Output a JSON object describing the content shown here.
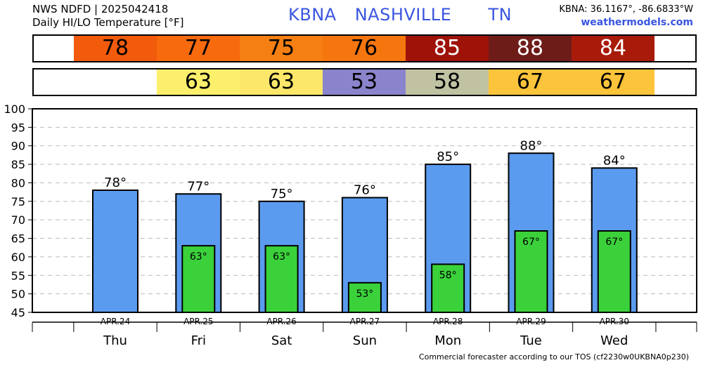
{
  "header": {
    "product_line": "NWS NDFD | 2025042418",
    "title_line": "Daily HI/LO Temperature [°F]",
    "station_id": "KBNA",
    "station_name": "NASHVILLE",
    "state": "TN",
    "coords": "KBNA: 36.1167°, -86.6833°W",
    "site": "weathermodels.com"
  },
  "footer": "Commercial forecaster according to our TOS (cf2230w0UKBNA0p230)",
  "colors": {
    "hi_bar": "#5b9bef",
    "lo_bar": "#3bd13b",
    "hi_strip": [
      "#f25a0c",
      "#f76a0e",
      "#f57f12",
      "#f5760f",
      "#9e1208",
      "#6e1c18",
      "#a81b0b"
    ],
    "lo_strip": [
      null,
      "#fcef6c",
      "#fce76a",
      "#8a84cc",
      "#c1c2a2",
      "#fcc43a",
      "#fcc43a"
    ],
    "hi_strip_text": [
      "#000",
      "#000",
      "#000",
      "#000",
      "#fff",
      "#fff",
      "#fff"
    ]
  },
  "hi_strip_values": [
    "78",
    "77",
    "75",
    "76",
    "85",
    "88",
    "84"
  ],
  "lo_strip_values": [
    "",
    "63",
    "63",
    "53",
    "58",
    "67",
    "67"
  ],
  "chart_data": {
    "type": "bar",
    "categories": [
      "Thu",
      "Fri",
      "Sat",
      "Sun",
      "Mon",
      "Tue",
      "Wed"
    ],
    "dates": [
      "APR.24",
      "APR.25",
      "APR.26",
      "APR.27",
      "APR.28",
      "APR.29",
      "APR.30"
    ],
    "series": [
      {
        "values": [
          78,
          77,
          75,
          76,
          85,
          88,
          84
        ],
        "labels": [
          "78°",
          "77°",
          "75°",
          "76°",
          "85°",
          "88°",
          "84°"
        ]
      },
      {
        "values": [
          null,
          63,
          63,
          53,
          58,
          67,
          67
        ],
        "labels": [
          "",
          "63°",
          "63°",
          "53°",
          "58°",
          "67°",
          "67°"
        ]
      }
    ],
    "ylim": [
      45,
      100
    ],
    "yticks": [
      "45",
      "50",
      "55",
      "60",
      "65",
      "70",
      "75",
      "80",
      "85",
      "90",
      "95",
      "100"
    ],
    "grid": true
  }
}
